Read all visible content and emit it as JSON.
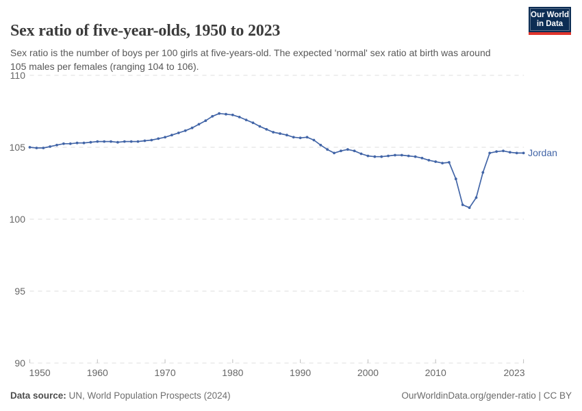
{
  "header": {
    "title": "Sex ratio of five-year-olds, 1950 to 2023",
    "subtitle": "Sex ratio is the number of boys per 100 girls at five-years-old. The expected 'normal' sex ratio at birth was around 105 males per females (ranging 104 to 106)."
  },
  "logo": {
    "line1": "Our World",
    "line2": "in Data",
    "bg_color": "#0C2D54",
    "bar_color": "#E0342C"
  },
  "chart_data": {
    "type": "line",
    "title": "Sex ratio of five-year-olds, 1950 to 2023",
    "xlabel": "",
    "ylabel": "",
    "xlim": [
      1950,
      2023
    ],
    "ylim": [
      90,
      110
    ],
    "yticks": [
      90,
      95,
      100,
      105,
      110
    ],
    "xticks": [
      1950,
      1960,
      1970,
      1980,
      1990,
      2000,
      2010,
      2023
    ],
    "grid": "horizontal-dashed",
    "legend": "end-of-line-label",
    "end_label": "Jordan",
    "x": [
      1950,
      1951,
      1952,
      1953,
      1954,
      1955,
      1956,
      1957,
      1958,
      1959,
      1960,
      1961,
      1962,
      1963,
      1964,
      1965,
      1966,
      1967,
      1968,
      1969,
      1970,
      1971,
      1972,
      1973,
      1974,
      1975,
      1976,
      1977,
      1978,
      1979,
      1980,
      1981,
      1982,
      1983,
      1984,
      1985,
      1986,
      1987,
      1988,
      1989,
      1990,
      1991,
      1992,
      1993,
      1994,
      1995,
      1996,
      1997,
      1998,
      1999,
      2000,
      2001,
      2002,
      2003,
      2004,
      2005,
      2006,
      2007,
      2008,
      2009,
      2010,
      2011,
      2012,
      2013,
      2014,
      2015,
      2016,
      2017,
      2018,
      2019,
      2020,
      2021,
      2022,
      2023
    ],
    "series": [
      {
        "name": "Jordan",
        "color": "#4265A7",
        "values": [
          105.0,
          104.95,
          104.95,
          105.05,
          105.15,
          105.25,
          105.25,
          105.3,
          105.3,
          105.35,
          105.4,
          105.4,
          105.4,
          105.35,
          105.4,
          105.4,
          105.4,
          105.45,
          105.5,
          105.6,
          105.7,
          105.85,
          106.0,
          106.15,
          106.35,
          106.6,
          106.85,
          107.15,
          107.35,
          107.3,
          107.25,
          107.1,
          106.9,
          106.7,
          106.45,
          106.25,
          106.05,
          105.95,
          105.85,
          105.7,
          105.65,
          105.7,
          105.5,
          105.15,
          104.85,
          104.6,
          104.75,
          104.85,
          104.75,
          104.55,
          104.4,
          104.35,
          104.35,
          104.4,
          104.45,
          104.45,
          104.4,
          104.35,
          104.25,
          104.1,
          104.0,
          103.9,
          103.95,
          102.8,
          101.0,
          100.8,
          101.5,
          103.25,
          104.6,
          104.7,
          104.75,
          104.65,
          104.6,
          104.6
        ]
      }
    ]
  },
  "theme": {
    "grid_color": "#dddddd",
    "tick_text_color": "#666666",
    "axis_tick_color": "#bdbdbd",
    "line_width": 1.7,
    "dot_radius": 1.9
  },
  "footer": {
    "source_label": "Data source:",
    "source_value": " UN, World Population Prospects (2024)",
    "link_text": "OurWorldinData.org/gender-ratio | CC BY"
  }
}
